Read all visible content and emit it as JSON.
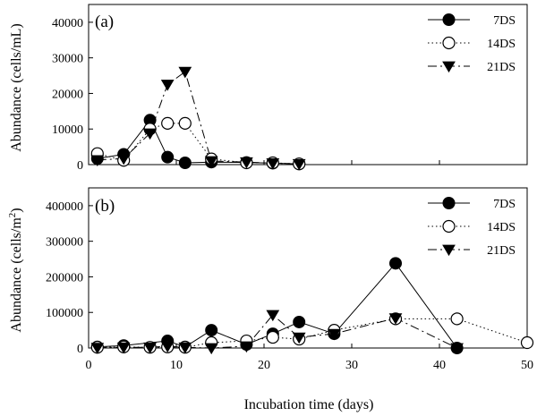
{
  "chart_data": [
    {
      "type": "line",
      "panel_label": "(a)",
      "ylabel": "Abundance  (cells/mL)",
      "xlim": [
        0,
        50
      ],
      "ylim": [
        0,
        45000
      ],
      "yticks": [
        0,
        10000,
        20000,
        30000,
        40000
      ],
      "ytick_labels": [
        "0",
        "10000",
        "20000",
        "30000",
        "40000"
      ],
      "show_xtick_labels": false,
      "legend_position": "top-right",
      "series": [
        {
          "name": "7DS",
          "marker": "filled-circle",
          "line_style": "solid",
          "x": [
            1,
            4,
            7,
            9,
            11,
            14,
            18,
            21,
            24
          ],
          "y": [
            1700,
            2900,
            12500,
            2100,
            500,
            700,
            600,
            400,
            200
          ]
        },
        {
          "name": "14DS",
          "marker": "open-circle",
          "line_style": "dotted",
          "x": [
            1,
            4,
            7,
            9,
            11,
            14,
            18,
            21,
            24
          ],
          "y": [
            3100,
            1200,
            10000,
            11600,
            11600,
            1600,
            500,
            500,
            200
          ]
        },
        {
          "name": "21DS",
          "marker": "filled-triangle-down",
          "line_style": "dash-dot",
          "x": [
            1,
            4,
            7,
            9,
            11,
            14,
            18,
            21,
            24
          ],
          "y": [
            1300,
            1700,
            8800,
            22500,
            26100,
            1000,
            700,
            400,
            200
          ]
        }
      ]
    },
    {
      "type": "line",
      "panel_label": "(b)",
      "ylabel": "Abundance (cells/m²)",
      "xlabel": "Incubation time (days)",
      "xlim": [
        0,
        50
      ],
      "xticks": [
        0,
        10,
        20,
        30,
        40,
        50
      ],
      "xtick_labels": [
        "0",
        "10",
        "20",
        "30",
        "40",
        "50"
      ],
      "ylim": [
        0,
        450000
      ],
      "yticks": [
        0,
        100000,
        200000,
        300000,
        400000
      ],
      "ytick_labels": [
        "0",
        "100000",
        "200000",
        "300000",
        "400000"
      ],
      "show_xtick_labels": true,
      "legend_position": "top-right",
      "series": [
        {
          "name": "7DS",
          "marker": "filled-circle",
          "line_style": "solid",
          "x": [
            1,
            4,
            9,
            11,
            14,
            18,
            21,
            24,
            28,
            35,
            42
          ],
          "y": [
            3000,
            7000,
            20000,
            3000,
            50000,
            10000,
            40000,
            73000,
            40000,
            238000,
            0
          ]
        },
        {
          "name": "14DS",
          "marker": "open-circle",
          "line_style": "dotted",
          "x": [
            1,
            4,
            7,
            9,
            11,
            14,
            18,
            21,
            24,
            28,
            35,
            42,
            50
          ],
          "y": [
            2000,
            3000,
            2000,
            3000,
            2000,
            15000,
            20000,
            30000,
            25000,
            50000,
            82000,
            82000,
            15000
          ]
        },
        {
          "name": "21DS",
          "marker": "filled-triangle-down",
          "line_style": "dash-dot",
          "x": [
            1,
            4,
            7,
            9,
            11,
            14,
            18,
            21,
            24,
            28,
            35,
            42
          ],
          "y": [
            1000,
            2000,
            2000,
            5000,
            2000,
            0,
            5000,
            93000,
            30000,
            40000,
            84000,
            0
          ]
        }
      ]
    }
  ]
}
